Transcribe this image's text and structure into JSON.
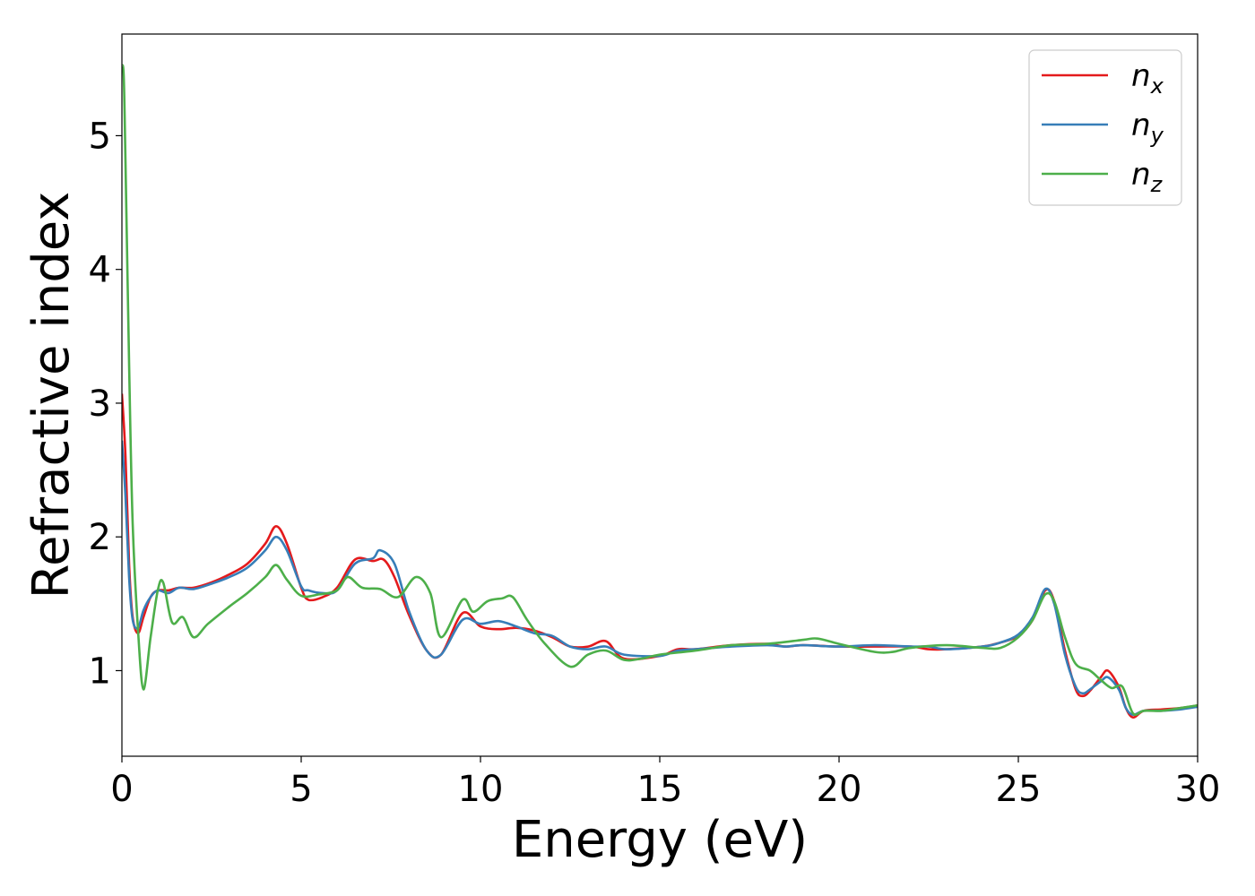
{
  "chart_data": {
    "type": "line",
    "xlabel": "Energy (eV)",
    "ylabel": "Refractive index",
    "xlim": [
      0,
      30
    ],
    "ylim": [
      0.36,
      5.76
    ],
    "xticks": [
      0,
      5,
      10,
      15,
      20,
      25,
      30
    ],
    "xtick_labels": [
      "0",
      "5",
      "10",
      "15",
      "20",
      "25",
      "30"
    ],
    "yticks": [
      1,
      2,
      3,
      4,
      5
    ],
    "ytick_labels": [
      "1",
      "2",
      "3",
      "4",
      "5"
    ],
    "grid": false,
    "legend_position": "top-right",
    "series": [
      {
        "name": "n",
        "subscript": "x",
        "color": "#e41a1c",
        "x": [
          0,
          0.1,
          0.2,
          0.3,
          0.45,
          0.6,
          0.8,
          1.0,
          1.3,
          1.6,
          2.0,
          2.5,
          3.0,
          3.5,
          4.0,
          4.3,
          4.6,
          5.0,
          5.2,
          5.6,
          6.0,
          6.5,
          7.0,
          7.3,
          7.6,
          8.0,
          8.5,
          8.9,
          9.5,
          10.0,
          10.5,
          11.0,
          11.5,
          12.0,
          12.5,
          13.0,
          13.5,
          14.0,
          15.0,
          15.5,
          16.0,
          17.0,
          18.0,
          18.5,
          19.0,
          20.0,
          21.0,
          22.0,
          22.5,
          23.0,
          24.0,
          24.5,
          25.0,
          25.4,
          25.75,
          26.0,
          26.3,
          26.6,
          26.8,
          27.0,
          27.3,
          27.5,
          27.8,
          28.0,
          28.2,
          28.5,
          29.0,
          29.5,
          30.0
        ],
        "y": [
          3.07,
          2.6,
          1.8,
          1.4,
          1.28,
          1.4,
          1.55,
          1.6,
          1.6,
          1.62,
          1.62,
          1.66,
          1.72,
          1.8,
          1.95,
          2.08,
          1.95,
          1.62,
          1.53,
          1.55,
          1.62,
          1.83,
          1.82,
          1.83,
          1.7,
          1.42,
          1.15,
          1.12,
          1.43,
          1.33,
          1.31,
          1.32,
          1.3,
          1.25,
          1.18,
          1.18,
          1.22,
          1.09,
          1.11,
          1.16,
          1.16,
          1.19,
          1.2,
          1.18,
          1.19,
          1.18,
          1.18,
          1.18,
          1.16,
          1.16,
          1.18,
          1.21,
          1.26,
          1.38,
          1.6,
          1.52,
          1.15,
          0.86,
          0.81,
          0.85,
          0.95,
          1.0,
          0.88,
          0.72,
          0.65,
          0.7,
          0.71,
          0.72,
          0.74
        ]
      },
      {
        "name": "n",
        "subscript": "y",
        "color": "#377eb8",
        "x": [
          0,
          0.1,
          0.2,
          0.3,
          0.45,
          0.6,
          0.8,
          1.0,
          1.3,
          1.6,
          2.0,
          2.5,
          3.0,
          3.5,
          4.0,
          4.3,
          4.6,
          5.0,
          5.2,
          5.6,
          6.0,
          6.5,
          7.0,
          7.2,
          7.6,
          8.0,
          8.5,
          8.9,
          9.5,
          10.0,
          10.5,
          11.0,
          11.5,
          12.0,
          12.5,
          13.0,
          13.5,
          14.0,
          15.0,
          15.5,
          16.0,
          17.0,
          18.0,
          18.5,
          19.0,
          20.0,
          21.0,
          22.0,
          22.5,
          23.0,
          24.0,
          24.5,
          25.0,
          25.4,
          25.75,
          26.0,
          26.3,
          26.6,
          26.8,
          27.0,
          27.3,
          27.5,
          27.8,
          28.0,
          28.2,
          28.5,
          29.0,
          29.5,
          30.0
        ],
        "y": [
          2.72,
          2.3,
          1.7,
          1.38,
          1.32,
          1.45,
          1.55,
          1.6,
          1.58,
          1.62,
          1.61,
          1.65,
          1.7,
          1.77,
          1.9,
          2.0,
          1.9,
          1.63,
          1.6,
          1.58,
          1.6,
          1.8,
          1.84,
          1.9,
          1.8,
          1.45,
          1.15,
          1.12,
          1.38,
          1.35,
          1.37,
          1.33,
          1.28,
          1.26,
          1.18,
          1.16,
          1.18,
          1.12,
          1.11,
          1.15,
          1.16,
          1.18,
          1.19,
          1.18,
          1.19,
          1.18,
          1.19,
          1.18,
          1.18,
          1.16,
          1.18,
          1.21,
          1.27,
          1.4,
          1.61,
          1.5,
          1.12,
          0.88,
          0.83,
          0.86,
          0.92,
          0.95,
          0.86,
          0.72,
          0.67,
          0.7,
          0.7,
          0.71,
          0.73
        ]
      },
      {
        "name": "n",
        "subscript": "z",
        "color": "#4daf4a",
        "x": [
          0,
          0.05,
          0.1,
          0.2,
          0.3,
          0.45,
          0.6,
          0.8,
          1.0,
          1.15,
          1.4,
          1.7,
          2.0,
          2.4,
          3.0,
          3.5,
          4.0,
          4.3,
          4.6,
          5.0,
          5.5,
          6.0,
          6.3,
          6.7,
          7.2,
          7.7,
          8.2,
          8.6,
          8.9,
          9.5,
          9.8,
          10.2,
          10.6,
          10.9,
          11.3,
          11.8,
          12.5,
          13.0,
          13.5,
          14.0,
          14.5,
          15.0,
          16.0,
          17.0,
          18.0,
          19.0,
          19.4,
          20.0,
          21.0,
          21.5,
          22.0,
          23.0,
          24.0,
          24.5,
          25.0,
          25.4,
          25.75,
          26.0,
          26.3,
          26.6,
          27.0,
          27.3,
          27.6,
          27.9,
          28.2,
          28.5,
          29.0,
          29.5,
          30.0
        ],
        "y": [
          5.52,
          5.45,
          4.8,
          3.3,
          2.1,
          1.3,
          0.86,
          1.25,
          1.6,
          1.66,
          1.36,
          1.4,
          1.25,
          1.35,
          1.48,
          1.58,
          1.7,
          1.79,
          1.68,
          1.56,
          1.57,
          1.6,
          1.7,
          1.62,
          1.61,
          1.55,
          1.7,
          1.58,
          1.25,
          1.53,
          1.44,
          1.52,
          1.54,
          1.55,
          1.38,
          1.2,
          1.03,
          1.12,
          1.15,
          1.08,
          1.09,
          1.12,
          1.15,
          1.19,
          1.2,
          1.23,
          1.24,
          1.2,
          1.14,
          1.14,
          1.17,
          1.19,
          1.17,
          1.17,
          1.25,
          1.38,
          1.57,
          1.52,
          1.25,
          1.05,
          1.0,
          0.93,
          0.87,
          0.88,
          0.68,
          0.7,
          0.7,
          0.72,
          0.74
        ]
      }
    ]
  }
}
